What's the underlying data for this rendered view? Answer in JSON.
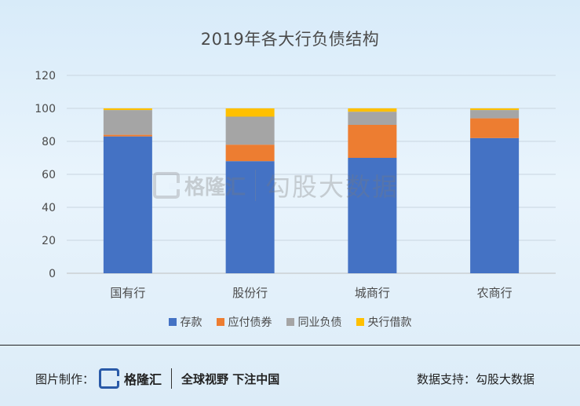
{
  "chart_data": {
    "type": "bar",
    "stacked": true,
    "title": "2019年各大行负债结构",
    "categories": [
      "国有行",
      "股份行",
      "城商行",
      "农商行"
    ],
    "ylim": [
      0,
      120
    ],
    "yticks": [
      0,
      20,
      40,
      60,
      80,
      100,
      120
    ],
    "grid": true,
    "legend_position": "bottom",
    "series": [
      {
        "name": "存款",
        "color": "#4472c4",
        "values": [
          83,
          68,
          70,
          82
        ]
      },
      {
        "name": "应付债券",
        "color": "#ed7d31",
        "values": [
          1,
          10,
          20,
          12
        ]
      },
      {
        "name": "同业负债",
        "color": "#a5a5a5",
        "values": [
          15,
          17,
          8,
          5
        ]
      },
      {
        "name": "央行借款",
        "color": "#ffc000",
        "values": [
          1,
          5,
          2,
          1
        ]
      }
    ]
  },
  "watermark": {
    "brand": "格隆汇",
    "site": "勾股大数据"
  },
  "footer": {
    "made_by_label": "图片制作：",
    "brand": "格隆汇",
    "slogan": "全球视野 下注中国",
    "support": "数据支持：勾股大数据"
  }
}
